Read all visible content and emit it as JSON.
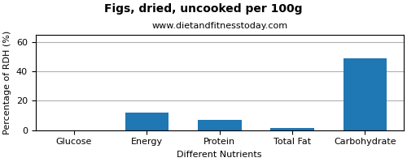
{
  "chart_data": {
    "type": "bar",
    "title": "Figs, dried, uncooked per 100g",
    "subtitle": "www.dietandfitnesstoday.com",
    "xlabel": "Different Nutrients",
    "ylabel": "Percentage of RDH (%)",
    "categories": [
      "Glucose",
      "Energy",
      "Protein",
      "Total Fat",
      "Carbohydrate"
    ],
    "values": [
      0.0,
      12.0,
      7.0,
      1.5,
      49.0
    ],
    "ylim": [
      0,
      65
    ],
    "yticks": [
      0,
      20,
      40,
      60
    ],
    "grid": true
  }
}
